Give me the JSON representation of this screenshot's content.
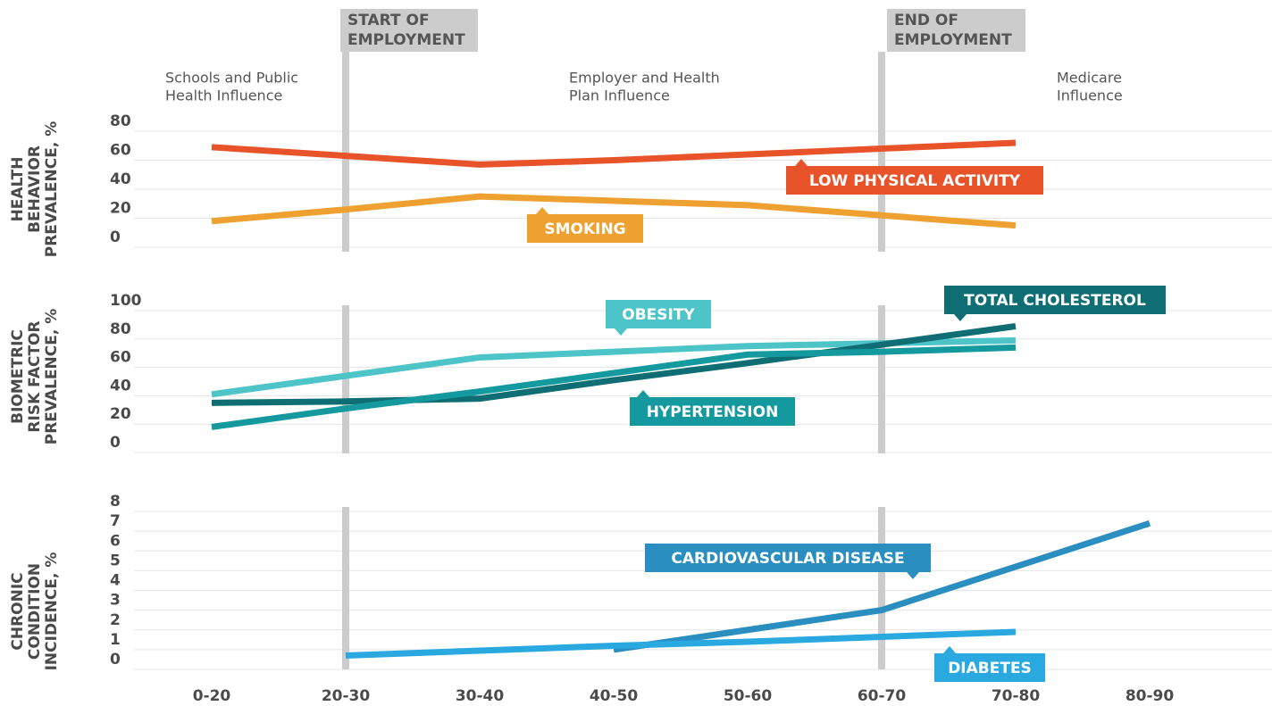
{
  "phases": [
    {
      "label": [
        "START OF",
        "EMPLOYMENT"
      ]
    },
    {
      "label": [
        "END OF",
        "EMPLOYMENT"
      ]
    }
  ],
  "influences": [
    [
      "Schools and Public",
      "Health Influence"
    ],
    [
      "Employer and Health",
      "Plan Influence"
    ],
    [
      "Medicare",
      "Influence"
    ]
  ],
  "chart_data": [
    {
      "type": "line",
      "ylabel": [
        "HEALTH",
        "BEHAVIOR",
        "PREVALENCE, %"
      ],
      "ylim": [
        0,
        80
      ],
      "yticks": [
        0,
        20,
        40,
        60,
        80
      ],
      "series": [
        {
          "name": "LOW PHYSICAL ACTIVITY",
          "color": "#e8532a",
          "values": [
            69,
            63,
            57,
            60,
            64,
            68,
            72,
            null
          ]
        },
        {
          "name": "SMOKING",
          "color": "#eea030",
          "values": [
            18,
            26,
            35,
            32,
            29,
            22,
            15,
            null
          ]
        }
      ]
    },
    {
      "type": "line",
      "ylabel": [
        "BIOMETRIC",
        "RISK FACTOR",
        "PREVALENCE, %"
      ],
      "ylim": [
        0,
        100
      ],
      "yticks": [
        0,
        20,
        40,
        60,
        80,
        100
      ],
      "series": [
        {
          "name": "OBESITY",
          "color": "#4dc4c8",
          "values": [
            41,
            54,
            67,
            71,
            75,
            77,
            79,
            null
          ]
        },
        {
          "name": "TOTAL CHOLESTEROL",
          "color": "#0e6e74",
          "values": [
            35,
            36,
            38,
            51,
            63,
            76,
            89,
            null
          ]
        },
        {
          "name": "HYPERTENSION",
          "color": "#13999e",
          "values": [
            18,
            31,
            43,
            56,
            69,
            71,
            74,
            null
          ]
        }
      ]
    },
    {
      "type": "line",
      "ylabel": [
        "CHRONIC",
        "CONDITION",
        "INCIDENCE, %"
      ],
      "ylim": [
        0,
        8
      ],
      "yticks": [
        0,
        1,
        2,
        3,
        4,
        5,
        6,
        7,
        8
      ],
      "categories": [
        "0-20",
        "20-30",
        "30-40",
        "40-50",
        "50-60",
        "60-70",
        "70-80",
        "80-90"
      ],
      "series": [
        {
          "name": "CARDIOVASCULAR DISEASE",
          "color": "#2a8fc0",
          "values": [
            null,
            null,
            null,
            1.0,
            2.0,
            3.0,
            5.2,
            7.4
          ]
        },
        {
          "name": "DIABETES",
          "color": "#2aa8e0",
          "values": [
            null,
            0.7,
            0.95,
            1.2,
            1.4,
            1.65,
            1.9,
            null
          ]
        }
      ]
    }
  ]
}
